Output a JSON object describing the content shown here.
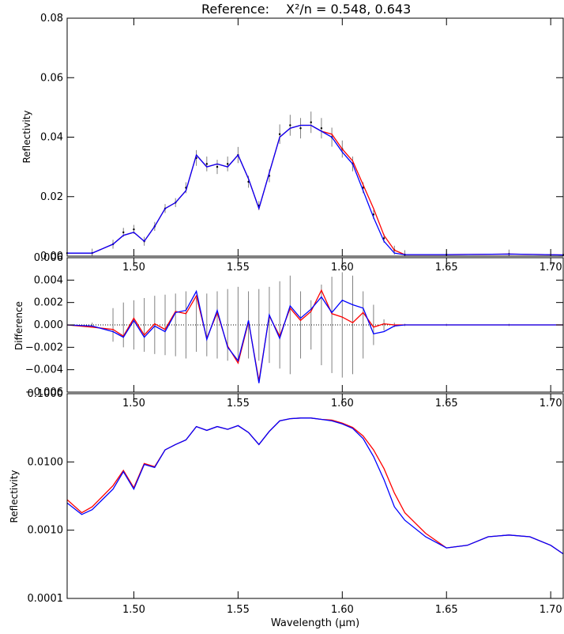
{
  "title_left": "Reference:",
  "title_right": "X²/n = 0.548, 0.643",
  "colors": {
    "model_a": "#ff0000",
    "model_b": "#0000ff",
    "data": "#000000",
    "error_bar": "#808080"
  },
  "chart_data": [
    {
      "type": "line",
      "panel": "top",
      "ylabel": "Reflectivity",
      "xlim": [
        1.468,
        1.706
      ],
      "ylim": [
        0.0,
        0.08
      ],
      "x_ticks": [
        "1.50",
        "1.55",
        "1.60",
        "1.65",
        "1.70"
      ],
      "y_ticks": [
        "0.00",
        "0.02",
        "0.04",
        "0.06",
        "0.08"
      ],
      "x": [
        1.468,
        1.48,
        1.49,
        1.495,
        1.5,
        1.505,
        1.51,
        1.515,
        1.52,
        1.525,
        1.53,
        1.535,
        1.54,
        1.545,
        1.55,
        1.555,
        1.56,
        1.565,
        1.57,
        1.575,
        1.58,
        1.585,
        1.59,
        1.595,
        1.6,
        1.605,
        1.61,
        1.615,
        1.62,
        1.625,
        1.63,
        1.65,
        1.68,
        1.706
      ],
      "series": [
        {
          "values": [
            0.001,
            0.001,
            0.004,
            0.007,
            0.008,
            0.005,
            0.01,
            0.016,
            0.018,
            0.022,
            0.034,
            0.03,
            0.031,
            0.03,
            0.034,
            0.026,
            0.016,
            0.028,
            0.04,
            0.043,
            0.044,
            0.044,
            0.042,
            0.041,
            0.036,
            0.032,
            0.024,
            0.016,
            0.007,
            0.002,
            0.0005,
            0.0005,
            0.0007,
            0.0004
          ]
        },
        {
          "values": [
            0.001,
            0.001,
            0.004,
            0.007,
            0.008,
            0.005,
            0.01,
            0.016,
            0.018,
            0.022,
            0.034,
            0.03,
            0.031,
            0.03,
            0.034,
            0.026,
            0.016,
            0.028,
            0.04,
            0.043,
            0.044,
            0.044,
            0.042,
            0.04,
            0.035,
            0.031,
            0.022,
            0.013,
            0.005,
            0.001,
            0.0005,
            0.0005,
            0.0007,
            0.0004
          ]
        }
      ],
      "data_values": [
        0.001,
        0.001,
        0.004,
        0.008,
        0.009,
        0.005,
        0.01,
        0.016,
        0.018,
        0.023,
        0.033,
        0.031,
        0.03,
        0.031,
        0.034,
        0.025,
        0.017,
        0.027,
        0.041,
        0.044,
        0.043,
        0.045,
        0.043,
        0.04,
        0.036,
        0.031,
        0.023,
        0.014,
        0.006,
        0.002,
        0.0005,
        0.0005,
        0.0007,
        0.0004
      ]
    },
    {
      "type": "line",
      "panel": "middle",
      "ylabel": "Difference",
      "xlim": [
        1.468,
        1.706
      ],
      "ylim": [
        -0.006,
        0.006
      ],
      "x_ticks": [
        "1.50",
        "1.55",
        "1.60",
        "1.65",
        "1.70"
      ],
      "y_ticks": [
        "−0.006",
        "−0.004",
        "−0.002",
        "0.000",
        "0.002",
        "0.004",
        "0.006"
      ],
      "x": [
        1.468,
        1.48,
        1.49,
        1.495,
        1.5,
        1.505,
        1.51,
        1.515,
        1.52,
        1.525,
        1.53,
        1.535,
        1.54,
        1.545,
        1.55,
        1.555,
        1.56,
        1.565,
        1.57,
        1.575,
        1.58,
        1.585,
        1.59,
        1.595,
        1.6,
        1.605,
        1.61,
        1.615,
        1.62,
        1.625,
        1.63,
        1.65,
        1.68,
        1.706
      ],
      "series": [
        {
          "values": [
            0.0,
            -0.0002,
            -0.0004,
            -0.001,
            0.0006,
            -0.0009,
            0.0001,
            -0.0004,
            0.0012,
            0.001,
            0.0026,
            -0.0012,
            0.0011,
            -0.0019,
            -0.0034,
            0.0003,
            -0.005,
            0.0008,
            -0.001,
            0.0015,
            0.0004,
            0.0012,
            0.0031,
            0.001,
            0.0007,
            0.0002,
            0.0011,
            -0.0002,
            0.0001,
            0.0,
            0.0,
            0.0,
            0.0,
            0.0
          ]
        },
        {
          "values": [
            0.0,
            -0.0001,
            -0.0006,
            -0.0011,
            0.0004,
            -0.0011,
            -0.0001,
            -0.0006,
            0.0011,
            0.0013,
            0.003,
            -0.0013,
            0.0013,
            -0.002,
            -0.0032,
            0.0004,
            -0.0052,
            0.0009,
            -0.0012,
            0.0017,
            0.0006,
            0.0014,
            0.0025,
            0.0011,
            0.0022,
            0.0018,
            0.0015,
            -0.0008,
            -0.0006,
            -0.0001,
            0.0,
            0.0,
            0.0,
            0.0
          ]
        }
      ],
      "error_values": [
        0.0001,
        0.0002,
        0.0015,
        0.002,
        0.0022,
        0.0024,
        0.0026,
        0.0027,
        0.0028,
        0.003,
        0.0024,
        0.0028,
        0.003,
        0.0032,
        0.0034,
        0.003,
        0.0032,
        0.0034,
        0.0039,
        0.0044,
        0.003,
        0.0022,
        0.0036,
        0.0043,
        0.0047,
        0.0044,
        0.003,
        0.0018,
        0.0005,
        0.0002,
        0.0001,
        0.0001,
        0.0001,
        0.0001
      ]
    },
    {
      "type": "line",
      "panel": "bottom",
      "ylabel": "Reflectivity",
      "xlabel": "Wavelength (μm)",
      "xlim": [
        1.468,
        1.706
      ],
      "ylim": [
        0.0001,
        0.1
      ],
      "y_scale": "log",
      "x_ticks": [
        "1.50",
        "1.55",
        "1.60",
        "1.65",
        "1.70"
      ],
      "y_ticks": [
        "0.0001",
        "0.0010",
        "0.0100",
        "0.1000"
      ],
      "x": [
        1.468,
        1.475,
        1.48,
        1.49,
        1.495,
        1.5,
        1.505,
        1.51,
        1.515,
        1.52,
        1.525,
        1.53,
        1.535,
        1.54,
        1.545,
        1.55,
        1.555,
        1.56,
        1.565,
        1.57,
        1.575,
        1.58,
        1.585,
        1.59,
        1.595,
        1.6,
        1.605,
        1.61,
        1.615,
        1.62,
        1.625,
        1.63,
        1.64,
        1.65,
        1.66,
        1.67,
        1.68,
        1.69,
        1.7,
        1.706
      ],
      "series": [
        {
          "values": [
            0.0028,
            0.0018,
            0.0022,
            0.0045,
            0.0075,
            0.0042,
            0.0095,
            0.0085,
            0.015,
            0.018,
            0.021,
            0.033,
            0.029,
            0.033,
            0.03,
            0.034,
            0.027,
            0.018,
            0.028,
            0.04,
            0.043,
            0.044,
            0.044,
            0.042,
            0.041,
            0.037,
            0.032,
            0.024,
            0.015,
            0.008,
            0.0035,
            0.0018,
            0.0009,
            0.00055,
            0.0006,
            0.0008,
            0.00085,
            0.0008,
            0.0006,
            0.00045
          ]
        },
        {
          "values": [
            0.0025,
            0.0017,
            0.002,
            0.004,
            0.0072,
            0.004,
            0.0092,
            0.0083,
            0.015,
            0.018,
            0.021,
            0.033,
            0.029,
            0.033,
            0.03,
            0.034,
            0.027,
            0.018,
            0.028,
            0.04,
            0.043,
            0.044,
            0.044,
            0.042,
            0.04,
            0.036,
            0.031,
            0.022,
            0.012,
            0.0055,
            0.0022,
            0.0014,
            0.0008,
            0.00055,
            0.0006,
            0.0008,
            0.00085,
            0.0008,
            0.0006,
            0.00045
          ]
        }
      ]
    }
  ]
}
